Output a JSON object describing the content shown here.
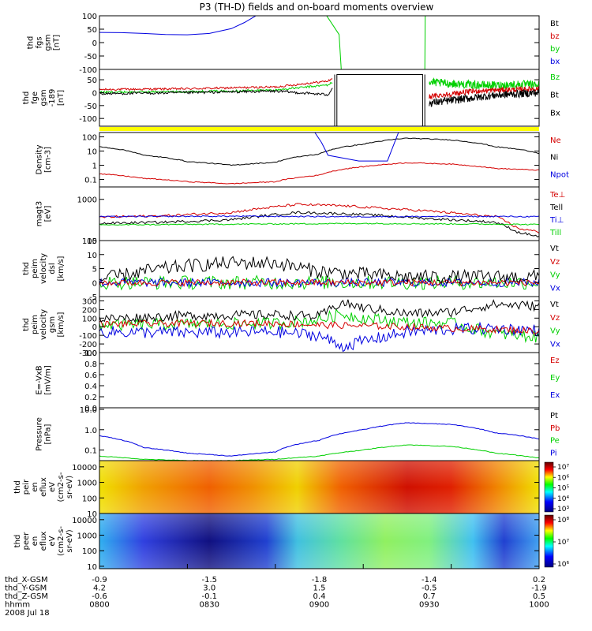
{
  "chart_data": {
    "type": "multi-panel-line-and-spectrogram",
    "title": "P3 (TH-D) fields and on-board moments overview",
    "colors": {
      "black": "#000000",
      "red": "#d40000",
      "green": "#00d000",
      "blue": "#0000e0",
      "yellow": "#ffff00"
    },
    "panels": [
      {
        "id": "fgs",
        "type": "line",
        "ylabel_lines": [
          "thd",
          "fgs",
          "gsm",
          "[nT]"
        ],
        "ylim": [
          -100,
          100
        ],
        "yticks": [
          -100,
          -50,
          0,
          50,
          100
        ],
        "legend": [
          {
            "label": "Bt",
            "color": "#000000"
          },
          {
            "label": "bz",
            "color": "#d40000"
          },
          {
            "label": "by",
            "color": "#00d000"
          },
          {
            "label": "bx",
            "color": "#0000e0"
          }
        ],
        "series": [
          {
            "color": "#0000e0",
            "noise": 0,
            "x": [
              0,
              0.05,
              0.1,
              0.15,
              0.2,
              0.25,
              0.3,
              0.33,
              0.36
            ],
            "y": [
              38,
              37,
              34,
              30,
              29,
              34,
              52,
              75,
              104
            ]
          },
          {
            "color": "#00d000",
            "noise": 0,
            "x": [
              0.515,
              0.525,
              0.535,
              0.545,
              0.55
            ],
            "y": [
              104,
              80,
              55,
              30,
              -104
            ]
          },
          {
            "color": "#00d000",
            "noise": 0,
            "x": [
              0.74,
              0.741
            ],
            "y": [
              -104,
              104
            ]
          }
        ]
      },
      {
        "id": "fge",
        "type": "line",
        "ylabel_lines": [
          "thd",
          "fge",
          "gsm",
          "-189",
          "[nT]"
        ],
        "ylim": [
          -130,
          90
        ],
        "yticks": [
          -100,
          -50,
          0,
          50
        ],
        "legend": [
          {
            "label": "Bz",
            "color": "#00d000"
          },
          {
            "label": "Bt",
            "color": "#000000"
          },
          {
            "label": "Bx",
            "color": "#000000"
          }
        ],
        "series": [
          {
            "color": "#d40000",
            "noise": 4,
            "x": [
              0,
              0.2,
              0.4,
              0.52,
              0.53
            ],
            "y": [
              12,
              15,
              22,
              45,
              55
            ]
          },
          {
            "color": "#00d000",
            "noise": 4,
            "x": [
              0,
              0.2,
              0.4,
              0.52,
              0.53
            ],
            "y": [
              2,
              4,
              10,
              30,
              40
            ]
          },
          {
            "color": "#000000",
            "noise": 5,
            "x": [
              0,
              0.2,
              0.4,
              0.52,
              0.53
            ],
            "y": [
              -4,
              0,
              6,
              -8,
              20
            ]
          },
          {
            "color": "#000000",
            "noise": 0,
            "x": [
              0.535,
              0.535,
              0.54,
              0.54,
              0.735,
              0.735,
              0.74,
              0.74
            ],
            "y": [
              70,
              -130,
              -130,
              70,
              70,
              -130,
              -130,
              70
            ]
          },
          {
            "color": "#00d000",
            "noise": 16,
            "x": [
              0.75,
              0.8,
              0.85,
              0.9,
              0.95,
              1
            ],
            "y": [
              40,
              35,
              30,
              28,
              32,
              30
            ]
          },
          {
            "color": "#d40000",
            "noise": 10,
            "x": [
              0.75,
              0.8,
              0.85,
              0.9,
              0.95,
              1
            ],
            "y": [
              -15,
              -5,
              5,
              10,
              12,
              15
            ]
          },
          {
            "color": "#000000",
            "noise": 15,
            "x": [
              0.75,
              0.8,
              0.85,
              0.9,
              0.95,
              1
            ],
            "y": [
              -40,
              -30,
              -20,
              -10,
              -5,
              0
            ]
          }
        ]
      },
      {
        "id": "density",
        "type": "line",
        "ylog": true,
        "ylabel_lines": [
          "Density",
          "[cm-3]"
        ],
        "ylim": [
          0.03,
          200
        ],
        "yticks": [
          0.1,
          1,
          10,
          100
        ],
        "legend": [
          {
            "label": "Ne",
            "color": "#d40000"
          },
          {
            "label": "Ni",
            "color": "#000000"
          },
          {
            "label": "Npot",
            "color": "#0000e0"
          }
        ],
        "series": [
          {
            "color": "#000000",
            "noise": 0.03,
            "x": [
              0,
              0.1,
              0.2,
              0.3,
              0.4,
              0.5,
              0.6,
              0.7,
              0.8,
              0.9,
              1
            ],
            "y": [
              20,
              5,
              1.8,
              1.0,
              1.6,
              6,
              30,
              80,
              60,
              20,
              7
            ]
          },
          {
            "color": "#d40000",
            "noise": 0.03,
            "x": [
              0,
              0.1,
              0.2,
              0.3,
              0.4,
              0.5,
              0.6,
              0.7,
              0.8,
              0.9,
              1
            ],
            "y": [
              0.25,
              0.12,
              0.07,
              0.05,
              0.07,
              0.2,
              0.8,
              1.5,
              1.2,
              0.6,
              0.45
            ]
          },
          {
            "color": "#0000e0",
            "noise": 0,
            "x": [
              0.49,
              0.505,
              0.52,
              0.59,
              0.655,
              0.68
            ],
            "y": [
              200,
              40,
              5,
              2,
              2,
              200
            ]
          }
        ]
      },
      {
        "id": "temperature",
        "type": "line",
        "ylog": true,
        "ylabel_lines": [
          "magt3",
          "[eV]"
        ],
        "ylim": [
          100,
          2000
        ],
        "yticks": [
          100,
          1000
        ],
        "legend": [
          {
            "label": "Te⊥",
            "color": "#d40000"
          },
          {
            "label": "Tell",
            "color": "#000000"
          },
          {
            "label": "Ti⊥",
            "color": "#0000e0"
          },
          {
            "label": "Till",
            "color": "#00d000"
          }
        ],
        "series": [
          {
            "color": "#d40000",
            "noise": 0.03,
            "x": [
              0,
              0.15,
              0.3,
              0.45,
              0.55,
              0.65,
              0.75,
              0.85,
              0.9,
              0.95,
              1
            ],
            "y": [
              370,
              400,
              480,
              750,
              700,
              600,
              520,
              420,
              380,
              200,
              160
            ]
          },
          {
            "color": "#000000",
            "noise": 0.03,
            "x": [
              0,
              0.15,
              0.3,
              0.45,
              0.55,
              0.65,
              0.75,
              0.85,
              0.9,
              0.95,
              1
            ],
            "y": [
              260,
              280,
              320,
              480,
              450,
              400,
              340,
              300,
              280,
              160,
              125
            ]
          },
          {
            "color": "#0000e0",
            "noise": 0.015,
            "x": [
              0,
              0.3,
              0.6,
              0.9,
              1
            ],
            "y": [
              380,
              390,
              380,
              385,
              380
            ]
          },
          {
            "color": "#00d000",
            "noise": 0.015,
            "x": [
              0,
              0.3,
              0.6,
              0.9,
              1
            ],
            "y": [
              240,
              250,
              260,
              250,
              245
            ]
          }
        ]
      },
      {
        "id": "vel_dsl",
        "type": "line",
        "ylabel_lines": [
          "thd",
          "peim",
          "velocity",
          "dsl",
          "[km/s]"
        ],
        "ylim": [
          -5,
          15
        ],
        "yticks": [
          -5,
          0,
          5,
          10,
          15
        ],
        "legend": [
          {
            "label": "Vt",
            "color": "#000000"
          },
          {
            "label": "Vz",
            "color": "#d40000"
          },
          {
            "label": "Vy",
            "color": "#00d000"
          },
          {
            "label": "Vx",
            "color": "#0000e0"
          }
        ],
        "series": [
          {
            "color": "#00d000",
            "noise": 2.5,
            "x": [
              0,
              0.2,
              0.4,
              0.6,
              0.8,
              1
            ],
            "y": [
              0,
              0,
              0,
              0,
              0,
              0
            ]
          },
          {
            "color": "#0000e0",
            "noise": 1.5,
            "x": [
              0,
              0.2,
              0.4,
              0.6,
              0.8,
              1
            ],
            "y": [
              0,
              0,
              0,
              0,
              0,
              0
            ]
          },
          {
            "color": "#d40000",
            "noise": 1.2,
            "x": [
              0,
              0.2,
              0.4,
              0.6,
              0.8,
              1
            ],
            "y": [
              0,
              0,
              0,
              0,
              0,
              0
            ]
          },
          {
            "color": "#000000",
            "noise": 2.5,
            "x": [
              0,
              0.1,
              0.2,
              0.3,
              0.4,
              0.5,
              0.6,
              0.7,
              0.8,
              0.9,
              1
            ],
            "y": [
              1,
              4,
              6,
              7,
              7,
              4,
              3,
              2,
              2,
              2,
              2
            ]
          }
        ]
      },
      {
        "id": "vel_gsm",
        "type": "line",
        "ylabel_lines": [
          "thd",
          "peim",
          "velocity",
          "gsm",
          "[km/s]"
        ],
        "ylim": [
          -300,
          350
        ],
        "yticks": [
          -300,
          -200,
          -100,
          0,
          100,
          200,
          300
        ],
        "legend": [
          {
            "label": "Vt",
            "color": "#000000"
          },
          {
            "label": "Vz",
            "color": "#d40000"
          },
          {
            "label": "Vy",
            "color": "#00d000"
          },
          {
            "label": "Vx",
            "color": "#0000e0"
          }
        ],
        "series": [
          {
            "color": "#00d000",
            "noise": 70,
            "x": [
              0,
              0.2,
              0.4,
              0.5,
              0.55,
              0.6,
              0.7,
              0.8,
              0.9,
              1
            ],
            "y": [
              20,
              30,
              40,
              80,
              150,
              100,
              50,
              40,
              -80,
              -120
            ]
          },
          {
            "color": "#0000e0",
            "noise": 70,
            "x": [
              0,
              0.2,
              0.4,
              0.5,
              0.55,
              0.6,
              0.7,
              0.8,
              0.9,
              1
            ],
            "y": [
              -60,
              -70,
              -60,
              -100,
              -230,
              -170,
              -60,
              -30,
              -20,
              -40
            ]
          },
          {
            "color": "#d40000",
            "noise": 40,
            "x": [
              0,
              0.2,
              0.4,
              0.5,
              0.6,
              0.7,
              0.8,
              0.9,
              1
            ],
            "y": [
              30,
              40,
              40,
              20,
              10,
              0,
              -20,
              -30,
              -50
            ]
          },
          {
            "color": "#000000",
            "noise": 55,
            "x": [
              0,
              0.2,
              0.4,
              0.5,
              0.55,
              0.6,
              0.7,
              0.8,
              0.9,
              1
            ],
            "y": [
              90,
              130,
              140,
              120,
              280,
              220,
              150,
              170,
              260,
              240
            ]
          }
        ]
      },
      {
        "id": "efield",
        "type": "line",
        "ylabel_lines": [
          "E=-VxB",
          "[mV/m]"
        ],
        "ylim": [
          0,
          1
        ],
        "yticks": [
          0,
          0.2,
          0.4,
          0.6,
          0.8,
          1.0
        ],
        "yticklabels": [
          "0.0",
          "0.2",
          "0.4",
          "0.6",
          "0.8",
          "1.0"
        ],
        "legend": [
          {
            "label": "Ez",
            "color": "#d40000"
          },
          {
            "label": "Ey",
            "color": "#00d000"
          },
          {
            "label": "Ex",
            "color": "#0000e0"
          }
        ],
        "series": []
      },
      {
        "id": "pressure",
        "type": "line",
        "ylog": true,
        "ylabel_lines": [
          "Pressure",
          "[nPa]"
        ],
        "ylim": [
          0.03,
          12
        ],
        "yticks": [
          0.1,
          1,
          10
        ],
        "yticklabels": [
          "0.1",
          "1.0",
          "10.0"
        ],
        "legend": [
          {
            "label": "Pt",
            "color": "#000000"
          },
          {
            "label": "Pb",
            "color": "#d40000"
          },
          {
            "label": "Pe",
            "color": "#00d000"
          },
          {
            "label": "Pi",
            "color": "#0000e0"
          }
        ],
        "series": [
          {
            "color": "#0000e0",
            "noise": 0.015,
            "x": [
              0,
              0.1,
              0.2,
              0.3,
              0.4,
              0.5,
              0.6,
              0.7,
              0.8,
              0.9,
              1
            ],
            "y": [
              0.5,
              0.13,
              0.07,
              0.05,
              0.08,
              0.3,
              1.0,
              2.2,
              1.8,
              0.7,
              0.35
            ]
          },
          {
            "color": "#00d000",
            "noise": 0.015,
            "x": [
              0,
              0.1,
              0.2,
              0.3,
              0.4,
              0.5,
              0.6,
              0.7,
              0.8,
              0.9,
              1
            ],
            "y": [
              0.05,
              0.035,
              0.03,
              0.03,
              0.035,
              0.05,
              0.1,
              0.18,
              0.15,
              0.07,
              0.04
            ]
          }
        ]
      },
      {
        "id": "ion_spec",
        "type": "heatmap",
        "ylog": true,
        "ylabel_lines": [
          "thd",
          "peir",
          "en",
          "eflux",
          "eV",
          "(cm2-s-",
          "sr-eV)"
        ],
        "ylim": [
          10,
          25000
        ],
        "yticks": [
          10,
          100,
          1000,
          10000
        ],
        "colorbar": {
          "ticks": [
            "10⁷",
            "10⁶",
            "10⁵",
            "10⁴",
            "10³"
          ]
        }
      },
      {
        "id": "elec_spec",
        "type": "heatmap",
        "ylog": true,
        "ylabel_lines": [
          "thd",
          "peer",
          "en",
          "eflux",
          "eV",
          "(cm2-s-",
          "sr-eV)"
        ],
        "ylim": [
          7,
          25000
        ],
        "yticks": [
          10,
          100,
          1000,
          10000
        ],
        "colorbar": {
          "ticks": [
            "10⁸",
            "10⁷",
            "10⁶"
          ]
        }
      }
    ],
    "x_axis": {
      "tick_fractions": [
        0,
        0.2,
        0.4,
        0.6,
        0.8,
        1.0
      ],
      "rows": [
        {
          "label": "thd_X-GSM",
          "values": [
            "-0.9",
            "-1.5",
            "-1.8",
            "-1.4",
            "0.2"
          ]
        },
        {
          "label": "thd_Y-GSM",
          "values": [
            "4.2",
            "3.0",
            "1.5",
            "-0.5",
            "-1.9"
          ]
        },
        {
          "label": "thd_Z-GSM",
          "values": [
            "-0.6",
            "-0.1",
            "0.4",
            "0.7",
            "0.5"
          ]
        },
        {
          "label": "hhmm",
          "values": [
            "0800",
            "0830",
            "0900",
            "0930",
            "1000"
          ]
        }
      ],
      "date": "2008 Jul 18"
    }
  }
}
